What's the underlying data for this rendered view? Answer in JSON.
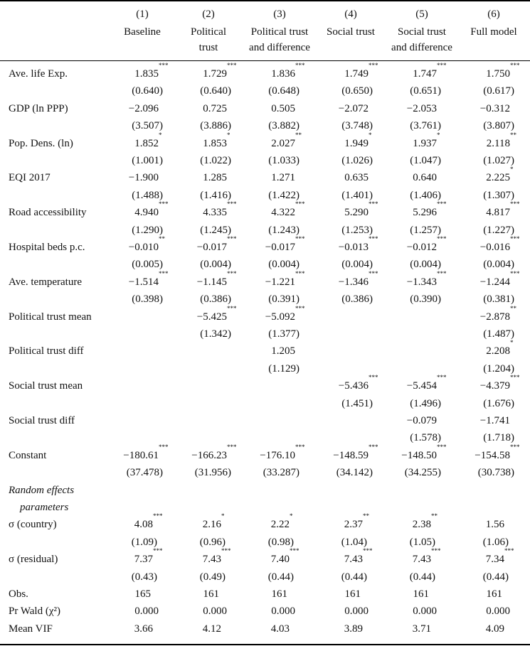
{
  "columns": [
    {
      "num": "(1)",
      "name": [
        "Baseline",
        ""
      ]
    },
    {
      "num": "(2)",
      "name": [
        "Political",
        "trust"
      ]
    },
    {
      "num": "(3)",
      "name": [
        "Political trust",
        "and difference"
      ]
    },
    {
      "num": "(4)",
      "name": [
        "Social trust",
        ""
      ]
    },
    {
      "num": "(5)",
      "name": [
        "Social trust",
        "and difference"
      ]
    },
    {
      "num": "(6)",
      "name": [
        "Full model",
        ""
      ]
    }
  ],
  "rows": [
    {
      "label": "Ave. life Exp.",
      "coef": [
        [
          "1.835",
          "***"
        ],
        [
          "1.729",
          "***"
        ],
        [
          "1.836",
          "***"
        ],
        [
          "1.749",
          "***"
        ],
        [
          "1.747",
          "***"
        ],
        [
          "1.750",
          "***"
        ]
      ],
      "se": [
        "(0.640)",
        "(0.640)",
        "(0.648)",
        "(0.650)",
        "(0.651)",
        "(0.617)"
      ]
    },
    {
      "label": "GDP (ln PPP)",
      "coef": [
        [
          "−2.096",
          ""
        ],
        [
          "0.725",
          ""
        ],
        [
          "0.505",
          ""
        ],
        [
          "−2.072",
          ""
        ],
        [
          "−2.053",
          ""
        ],
        [
          "−0.312",
          ""
        ]
      ],
      "se": [
        "(3.507)",
        "(3.886)",
        "(3.882)",
        "(3.748)",
        "(3.761)",
        "(3.807)"
      ]
    },
    {
      "label": "Pop. Dens. (ln)",
      "coef": [
        [
          "1.852",
          "*"
        ],
        [
          "1.853",
          "*"
        ],
        [
          "2.027",
          "**"
        ],
        [
          "1.949",
          "*"
        ],
        [
          "1.937",
          "*"
        ],
        [
          "2.118",
          "**"
        ]
      ],
      "se": [
        "(1.001)",
        "(1.022)",
        "(1.033)",
        "(1.026)",
        "(1.047)",
        "(1.027)"
      ]
    },
    {
      "label": "EQI 2017",
      "coef": [
        [
          "−1.900",
          ""
        ],
        [
          "1.285",
          ""
        ],
        [
          "1.271",
          ""
        ],
        [
          "0.635",
          ""
        ],
        [
          "0.640",
          ""
        ],
        [
          "2.225",
          "*"
        ]
      ],
      "se": [
        "(1.488)",
        "(1.416)",
        "(1.422)",
        "(1.401)",
        "(1.406)",
        "(1.307)"
      ]
    },
    {
      "label": "Road accessibility",
      "coef": [
        [
          "4.940",
          "***"
        ],
        [
          "4.335",
          "***"
        ],
        [
          "4.322",
          "***"
        ],
        [
          "5.290",
          "***"
        ],
        [
          "5.296",
          "***"
        ],
        [
          "4.817",
          "***"
        ]
      ],
      "se": [
        "(1.290)",
        "(1.245)",
        "(1.243)",
        "(1.253)",
        "(1.257)",
        "(1.227)"
      ]
    },
    {
      "label": "Hospital beds p.c.",
      "coef": [
        [
          "−0.010",
          "**"
        ],
        [
          "−0.017",
          "***"
        ],
        [
          "−0.017",
          "***"
        ],
        [
          "−0.013",
          "***"
        ],
        [
          "−0.012",
          "***"
        ],
        [
          "−0.016",
          "***"
        ]
      ],
      "se": [
        "(0.005)",
        "(0.004)",
        "(0.004)",
        "(0.004)",
        "(0.004)",
        "(0.004)"
      ]
    },
    {
      "label": "Ave. temperature",
      "coef": [
        [
          "−1.514",
          "***"
        ],
        [
          "−1.145",
          "***"
        ],
        [
          "−1.221",
          "***"
        ],
        [
          "−1.346",
          "***"
        ],
        [
          "−1.343",
          "***"
        ],
        [
          "−1.244",
          "***"
        ]
      ],
      "se": [
        "(0.398)",
        "(0.386)",
        "(0.391)",
        "(0.386)",
        "(0.390)",
        "(0.381)"
      ]
    },
    {
      "label": "Political trust mean",
      "coef": [
        [
          "",
          ""
        ],
        [
          "−5.425",
          "***"
        ],
        [
          "−5.092",
          "***"
        ],
        [
          "",
          ""
        ],
        [
          "",
          ""
        ],
        [
          "−2.878",
          "**"
        ]
      ],
      "se": [
        "",
        "(1.342)",
        "(1.377)",
        "",
        "",
        "(1.487)"
      ]
    },
    {
      "label": "Political trust diff",
      "coef": [
        [
          "",
          ""
        ],
        [
          "",
          ""
        ],
        [
          "1.205",
          ""
        ],
        [
          "",
          ""
        ],
        [
          "",
          ""
        ],
        [
          "2.208",
          "*"
        ]
      ],
      "se": [
        "",
        "",
        "(1.129)",
        "",
        "",
        "(1.204)"
      ]
    },
    {
      "label": "Social trust mean",
      "coef": [
        [
          "",
          ""
        ],
        [
          "",
          ""
        ],
        [
          "",
          ""
        ],
        [
          "−5.436",
          "***"
        ],
        [
          "−5.454",
          "***"
        ],
        [
          "−4.379",
          "***"
        ]
      ],
      "se": [
        "",
        "",
        "",
        "(1.451)",
        "(1.496)",
        "(1.676)"
      ]
    },
    {
      "label": "Social trust diff",
      "coef": [
        [
          "",
          ""
        ],
        [
          "",
          ""
        ],
        [
          "",
          ""
        ],
        [
          "",
          ""
        ],
        [
          "−0.079",
          ""
        ],
        [
          "−1.741",
          ""
        ]
      ],
      "se": [
        "",
        "",
        "",
        "",
        "(1.578)",
        "(1.718)"
      ]
    },
    {
      "label": "Constant",
      "coef": [
        [
          "−180.61",
          "***"
        ],
        [
          "−166.23",
          "***"
        ],
        [
          "−176.10",
          "***"
        ],
        [
          "−148.59",
          "***"
        ],
        [
          "−148.50",
          "***"
        ],
        [
          "−154.58",
          "***"
        ]
      ],
      "se": [
        "(37.478)",
        "(31.956)",
        "(33.287)",
        "(34.142)",
        "(34.255)",
        "(30.738)"
      ]
    }
  ],
  "random_effects": {
    "heading": [
      "Random effects",
      "parameters"
    ],
    "rows": [
      {
        "label": "σ (country)",
        "coef": [
          [
            "4.08",
            "***"
          ],
          [
            "2.16",
            "*"
          ],
          [
            "2.22",
            "*"
          ],
          [
            "2.37",
            "**"
          ],
          [
            "2.38",
            "**"
          ],
          [
            "1.56",
            ""
          ]
        ],
        "se": [
          "(1.09)",
          "(0.96)",
          "(0.98)",
          "(1.04)",
          "(1.05)",
          "(1.06)"
        ]
      },
      {
        "label": "σ (residual)",
        "coef": [
          [
            "7.37",
            "***"
          ],
          [
            "7.43",
            "***"
          ],
          [
            "7.40",
            "***"
          ],
          [
            "7.43",
            "***"
          ],
          [
            "7.43",
            "***"
          ],
          [
            "7.34",
            "***"
          ]
        ],
        "se": [
          "(0.43)",
          "(0.49)",
          "(0.44)",
          "(0.44)",
          "(0.44)",
          "(0.44)"
        ]
      }
    ]
  },
  "stats": [
    {
      "label": "Obs.",
      "values": [
        "165",
        "161",
        "161",
        "161",
        "161",
        "161"
      ]
    },
    {
      "label": "Pr Wald (χ²)",
      "values": [
        "0.000",
        "0.000",
        "0.000",
        "0.000",
        "0.000",
        "0.000"
      ]
    },
    {
      "label": "Mean VIF",
      "values": [
        "3.66",
        "4.12",
        "4.03",
        "3.89",
        "3.71",
        "4.09"
      ]
    }
  ]
}
